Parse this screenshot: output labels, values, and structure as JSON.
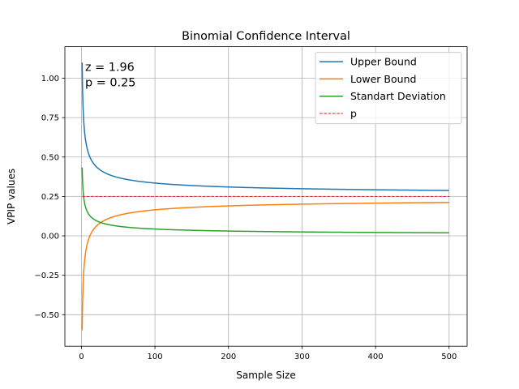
{
  "chart_data": {
    "type": "line",
    "title": "Binomial Confidence Interval",
    "xlabel": "Sample Size",
    "ylabel": "VPIP values",
    "xlim": [
      -22.5,
      524.5
    ],
    "ylim": [
      -0.7,
      1.2
    ],
    "grid": true,
    "x_ticks": [
      0,
      100,
      200,
      300,
      400,
      500
    ],
    "x_tick_labels": [
      "0",
      "100",
      "200",
      "300",
      "400",
      "500"
    ],
    "y_ticks": [
      -0.5,
      -0.25,
      0.0,
      0.25,
      0.5,
      0.75,
      1.0
    ],
    "y_tick_labels": [
      "−0.50",
      "−0.25",
      "0.00",
      "0.25",
      "0.50",
      "0.75",
      "1.00"
    ],
    "annotation_lines": [
      "z = 1.96",
      "p = 0.25"
    ],
    "annotation_position": "top-left",
    "legend_position": "top-right",
    "parameters": {
      "z": 1.96,
      "p": 0.25
    },
    "x_range": [
      1,
      500
    ],
    "series": [
      {
        "name": "Upper Bound",
        "color": "#1f77b4",
        "style": "solid",
        "points": [
          [
            1,
            1.099
          ],
          [
            2,
            0.85
          ],
          [
            3,
            0.74
          ],
          [
            5,
            0.63
          ],
          [
            10,
            0.518
          ],
          [
            20,
            0.44
          ],
          [
            50,
            0.37
          ],
          [
            100,
            0.335
          ],
          [
            200,
            0.31
          ],
          [
            300,
            0.299
          ],
          [
            400,
            0.292
          ],
          [
            500,
            0.288
          ]
        ]
      },
      {
        "name": "Lower Bound",
        "color": "#ff7f0e",
        "style": "solid",
        "points": [
          [
            1,
            -0.599
          ],
          [
            2,
            -0.35
          ],
          [
            3,
            -0.24
          ],
          [
            5,
            -0.13
          ],
          [
            10,
            -0.018
          ],
          [
            20,
            0.06
          ],
          [
            50,
            0.13
          ],
          [
            100,
            0.165
          ],
          [
            200,
            0.19
          ],
          [
            300,
            0.201
          ],
          [
            400,
            0.208
          ],
          [
            500,
            0.212
          ]
        ]
      },
      {
        "name": "Standart Deviation",
        "color": "#2ca02c",
        "style": "solid",
        "points": [
          [
            1,
            0.433
          ],
          [
            2,
            0.306
          ],
          [
            3,
            0.25
          ],
          [
            5,
            0.194
          ],
          [
            10,
            0.137
          ],
          [
            20,
            0.097
          ],
          [
            50,
            0.061
          ],
          [
            100,
            0.043
          ],
          [
            200,
            0.031
          ],
          [
            300,
            0.025
          ],
          [
            400,
            0.022
          ],
          [
            500,
            0.019
          ]
        ]
      },
      {
        "name": "p",
        "color": "#d62728",
        "style": "dashed",
        "points": [
          [
            1,
            0.25
          ],
          [
            500,
            0.25
          ]
        ]
      }
    ]
  }
}
